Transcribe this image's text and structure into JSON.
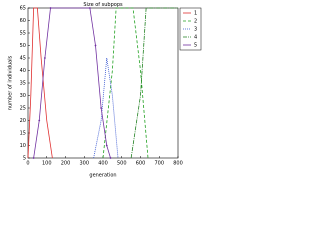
{
  "chart_data": {
    "type": "line",
    "title": "Size of subpops",
    "xlabel": "generation",
    "ylabel": "number of individuals",
    "xlim": [
      0,
      800
    ],
    "xticks": [
      0,
      100,
      200,
      300,
      400,
      500,
      600,
      700,
      800
    ],
    "ylim": [
      5,
      65
    ],
    "yticks": [
      5,
      10,
      15,
      20,
      25,
      30,
      35,
      40,
      45,
      50,
      55,
      60,
      65
    ],
    "legend": "top-right-outside",
    "series": [
      {
        "name": "1",
        "color": "#e03030",
        "dash": "",
        "x": [
          0,
          15,
          30,
          50,
          70,
          100,
          130
        ],
        "values": [
          5,
          30,
          65,
          65,
          45,
          20,
          5
        ]
      },
      {
        "name": "2",
        "color": "#20a020",
        "dash": "3 2",
        "x": [
          400,
          450,
          470,
          560,
          600,
          640
        ],
        "values": [
          5,
          40,
          65,
          65,
          40,
          5
        ]
      },
      {
        "name": "3",
        "color": "#3050d0",
        "dash": "1 1",
        "x": [
          350,
          390,
          420,
          450,
          480
        ],
        "values": [
          5,
          20,
          45,
          30,
          5
        ]
      },
      {
        "name": "4",
        "color": "#208020",
        "dash": "4 1 1 1",
        "x": [
          550,
          600,
          630,
          800
        ],
        "values": [
          5,
          30,
          65,
          65
        ]
      },
      {
        "name": "5",
        "color": "#7030a0",
        "dash": "",
        "markers": true,
        "x": [
          30,
          60,
          90,
          120,
          330,
          360,
          390,
          420,
          440
        ],
        "values": [
          5,
          20,
          45,
          65,
          65,
          50,
          25,
          10,
          5
        ]
      }
    ]
  }
}
